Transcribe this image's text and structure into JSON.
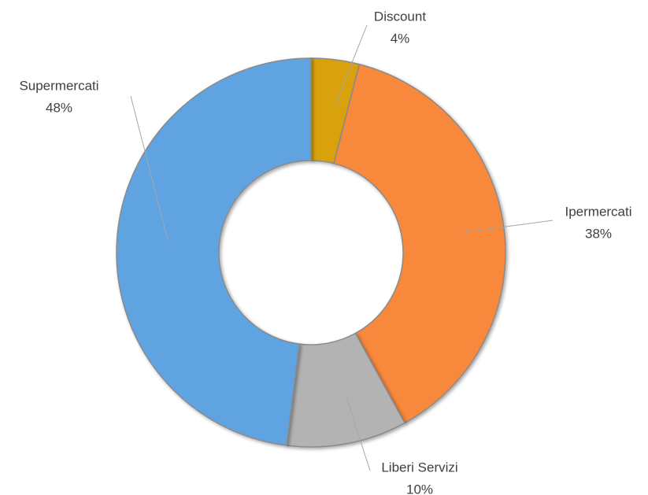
{
  "chart_data": {
    "type": "donut",
    "categories": [
      "Discount",
      "Ipermercati",
      "Liberi Servizi",
      "Supermercati"
    ],
    "values": [
      4,
      38,
      10,
      48
    ],
    "value_labels": [
      "4%",
      "38%",
      "10%",
      "48%"
    ],
    "colors": [
      "#d9a20b",
      "#f8883a",
      "#b3b3b3",
      "#5fa3e0"
    ]
  }
}
